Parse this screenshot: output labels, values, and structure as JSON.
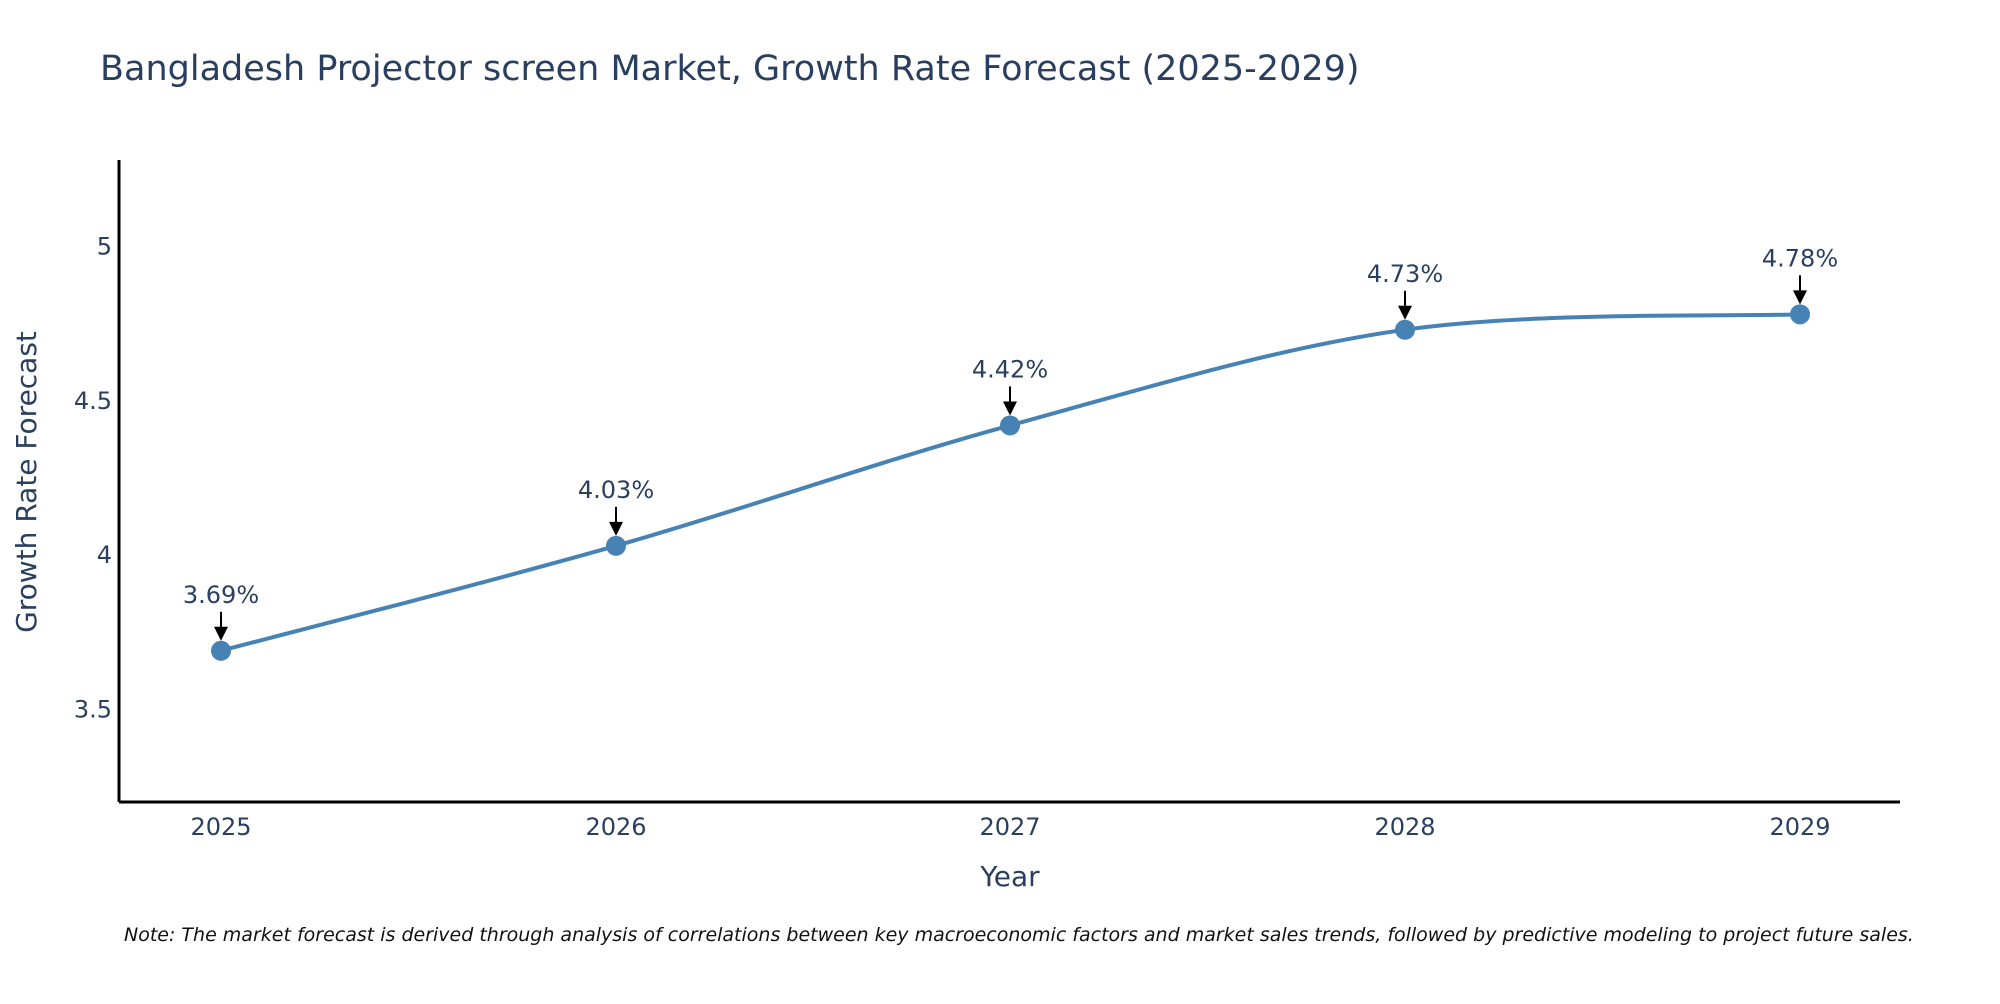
{
  "chart_data": {
    "type": "line",
    "title": "Bangladesh Projector screen Market, Growth Rate Forecast (2025-2029)",
    "xlabel": "Year",
    "ylabel": "Growth Rate Forecast",
    "categories": [
      "2025",
      "2026",
      "2027",
      "2028",
      "2029"
    ],
    "values": [
      3.69,
      4.03,
      4.42,
      4.73,
      4.78
    ],
    "data_labels": [
      "3.69%",
      "4.03%",
      "4.42%",
      "4.73%",
      "4.78%"
    ],
    "y_ticks": [
      3.5,
      4,
      4.5,
      5
    ],
    "y_tick_labels": [
      "3.5",
      "4",
      "4.5",
      "5"
    ],
    "ylim": [
      3.2,
      5.28
    ],
    "grid": false,
    "line_shape": "spline",
    "note": "Note: The market forecast is derived through analysis of correlations between key macroeconomic factors and market sales trends, followed by predictive modeling to project future sales."
  },
  "colors": {
    "line": "#4682b4",
    "marker": "#4682b4",
    "axis": "#000000",
    "text": "#2a3f5f",
    "arrow": "#000000"
  }
}
